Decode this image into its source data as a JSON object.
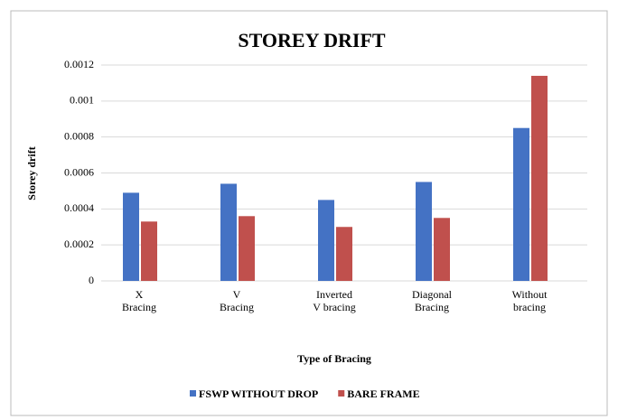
{
  "chart_data": {
    "type": "bar",
    "title": "STOREY DRIFT",
    "x_label": "Type of Bracing",
    "y_label": "Storey drift",
    "categories": [
      "X Bracing",
      "V Bracing",
      "Inverted V bracing",
      "Diagonal Bracing",
      "Without bracing"
    ],
    "series": [
      {
        "name": "FSWP WITHOUT DROP",
        "color": "#4472c4",
        "values": [
          0.00049,
          0.00054,
          0.00045,
          0.00055,
          0.00085
        ]
      },
      {
        "name": "BARE FRAME",
        "color": "#c0504d",
        "values": [
          0.00033,
          0.00036,
          0.0003,
          0.00035,
          0.00114
        ]
      }
    ],
    "ylim": [
      0,
      0.0012
    ],
    "yticks": [
      0,
      0.0002,
      0.0004,
      0.0006,
      0.0008,
      0.001,
      0.0012
    ],
    "grid": true,
    "legend": "bottom"
  }
}
